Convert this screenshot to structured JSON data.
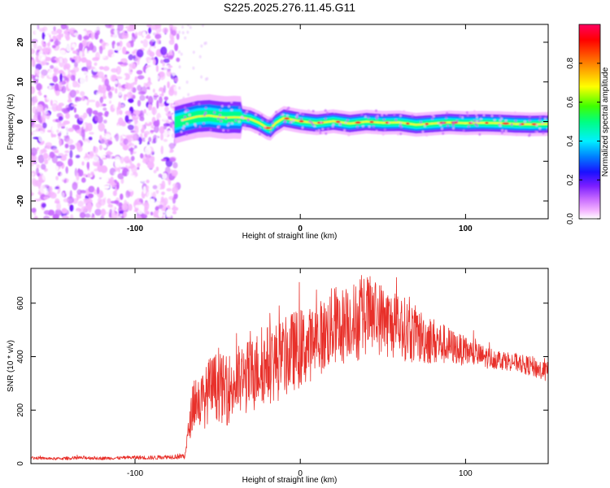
{
  "figure": {
    "title": "S225.2025.276.11.45.G11"
  },
  "colors": {
    "snr_line": "#e8302a",
    "axis": "#000000",
    "background": "#ffffff"
  },
  "chart_data": [
    {
      "type": "heatmap",
      "xlabel": "Height of straight line (km)",
      "ylabel": "Frequency (Hz)",
      "xlim": [
        -163,
        150
      ],
      "ylim": [
        -24.5,
        24.5
      ],
      "xticks": [
        -100,
        0,
        100
      ],
      "xtick_labels": [
        "-100",
        "0",
        "100"
      ],
      "yticks": [
        -20,
        -10,
        0,
        10,
        20
      ],
      "ytick_labels": [
        "-20",
        "-10",
        "0",
        "10",
        "20"
      ],
      "noise_region_x": [
        -163,
        -74
      ],
      "signal_track": {
        "x": [
          -76,
          -70,
          -62,
          -55,
          -50,
          -45,
          -40,
          -35,
          -30,
          -25,
          -20,
          -18,
          -15,
          -10,
          -5,
          0,
          10,
          20,
          30,
          40,
          50,
          60,
          70,
          80,
          90,
          100,
          110,
          120,
          130,
          140,
          150
        ],
        "freq_hz": [
          -0.2,
          0.5,
          1.3,
          1.5,
          1.2,
          1.0,
          1.1,
          1.0,
          0.6,
          -0.3,
          -1.6,
          -1.8,
          -0.4,
          0.9,
          0.5,
          0.1,
          -0.4,
          0.1,
          -0.5,
          0.0,
          -0.3,
          -0.2,
          -0.8,
          -0.5,
          -0.2,
          -0.4,
          -0.3,
          -0.4,
          -0.6,
          -0.7,
          -0.6
        ]
      },
      "colorbar": {
        "label": "Normalized spectral amplitude",
        "range": [
          0.0,
          1.0
        ],
        "ticks": [
          0.0,
          0.2,
          0.4,
          0.6,
          0.8
        ],
        "tick_labels": [
          "0.0",
          "0.2",
          "0.4",
          "0.6",
          "0.8"
        ],
        "colormap": [
          "#ffffff",
          "#f5b8ff",
          "#c96cff",
          "#7a1dff",
          "#1a10ff",
          "#0080ff",
          "#00f0ff",
          "#00ff80",
          "#40ff00",
          "#ffff00",
          "#ff8000",
          "#ff0000",
          "#ff0060"
        ]
      }
    },
    {
      "type": "line",
      "xlabel": "Height of straight line (km)",
      "ylabel": "SNR (10 * v/v)",
      "xlim": [
        -163,
        150
      ],
      "ylim": [
        0,
        730
      ],
      "xticks": [
        -100,
        0,
        100
      ],
      "xtick_labels": [
        "-100",
        "0",
        "100"
      ],
      "yticks": [
        0,
        200,
        400,
        600
      ],
      "ytick_labels": [
        "0",
        "200",
        "400",
        "600"
      ],
      "series": [
        {
          "name": "SNR",
          "x": [
            -163,
            -150,
            -140,
            -130,
            -120,
            -110,
            -100,
            -90,
            -80,
            -70,
            -66,
            -64,
            -62,
            -58,
            -55,
            -50,
            -45,
            -40,
            -35,
            -30,
            -25,
            -20,
            -15,
            -10,
            -5,
            0,
            5,
            10,
            15,
            20,
            25,
            30,
            35,
            40,
            45,
            50,
            55,
            60,
            65,
            70,
            75,
            80,
            85,
            90,
            95,
            100,
            105,
            110,
            115,
            120,
            125,
            130,
            135,
            140,
            145,
            150
          ],
          "values": [
            22,
            18,
            20,
            22,
            20,
            21,
            23,
            22,
            25,
            28,
            180,
            250,
            230,
            240,
            280,
            290,
            270,
            300,
            310,
            330,
            360,
            370,
            380,
            390,
            420,
            430,
            440,
            470,
            480,
            520,
            510,
            540,
            530,
            560,
            550,
            540,
            520,
            510,
            500,
            480,
            470,
            460,
            450,
            440,
            430,
            420,
            410,
            400,
            395,
            390,
            385,
            380,
            370,
            365,
            350,
            340
          ],
          "jitter": [
            6,
            5,
            6,
            7,
            6,
            6,
            7,
            8,
            8,
            12,
            70,
            110,
            100,
            110,
            120,
            130,
            130,
            140,
            140,
            140,
            140,
            150,
            150,
            150,
            150,
            150,
            140,
            140,
            140,
            150,
            150,
            140,
            150,
            150,
            140,
            140,
            130,
            120,
            120,
            110,
            100,
            90,
            80,
            70,
            60,
            55,
            50,
            45,
            40,
            38,
            36,
            35,
            35,
            38,
            40,
            40
          ]
        }
      ]
    }
  ]
}
